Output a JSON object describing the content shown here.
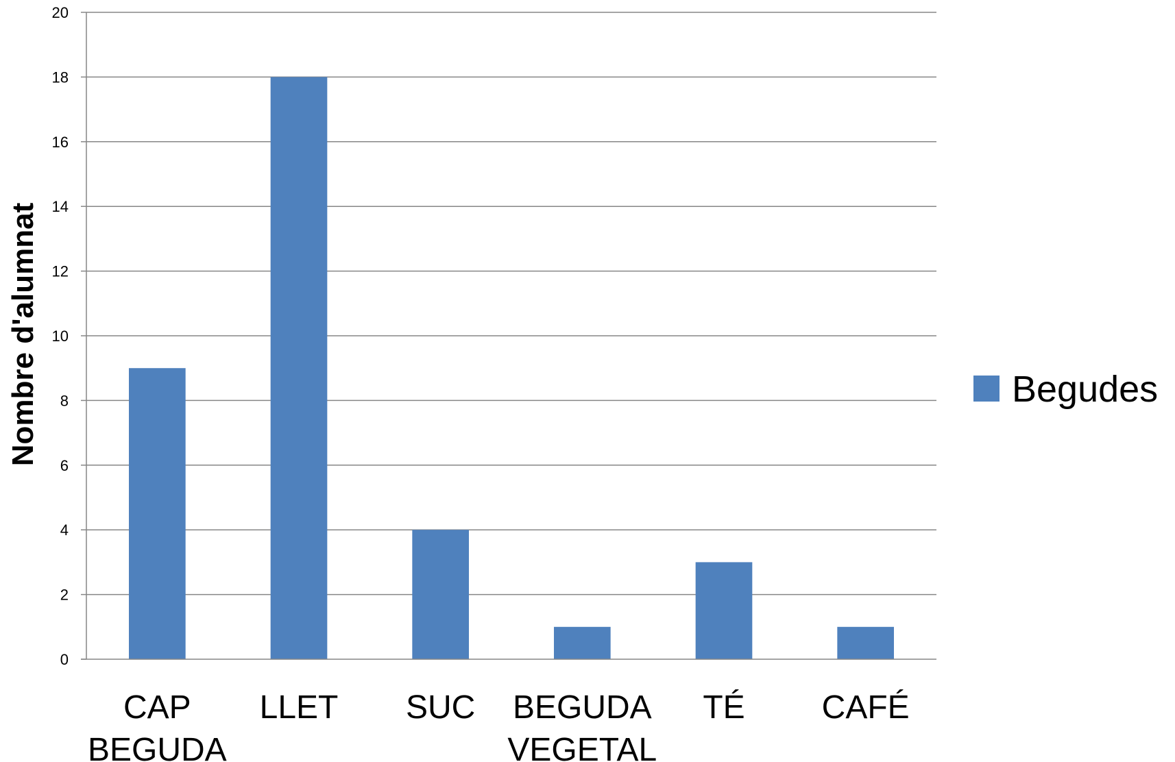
{
  "chart_data": {
    "type": "bar",
    "categories": [
      "CAP BEGUDA",
      "LLET",
      "SUC",
      "BEGUDA VEGETAL",
      "TÉ",
      "CAFÉ"
    ],
    "series": [
      {
        "name": "Begudes",
        "values": [
          9,
          18,
          4,
          1,
          3,
          1
        ],
        "color": "#4F81BD"
      }
    ],
    "title": "",
    "xlabel": "",
    "ylabel": "Nombre d'alumnat",
    "ylim": [
      0,
      20
    ],
    "yticks": [
      0,
      2,
      4,
      6,
      8,
      10,
      12,
      14,
      16,
      18,
      20
    ],
    "grid": true,
    "legend_position": "right"
  }
}
